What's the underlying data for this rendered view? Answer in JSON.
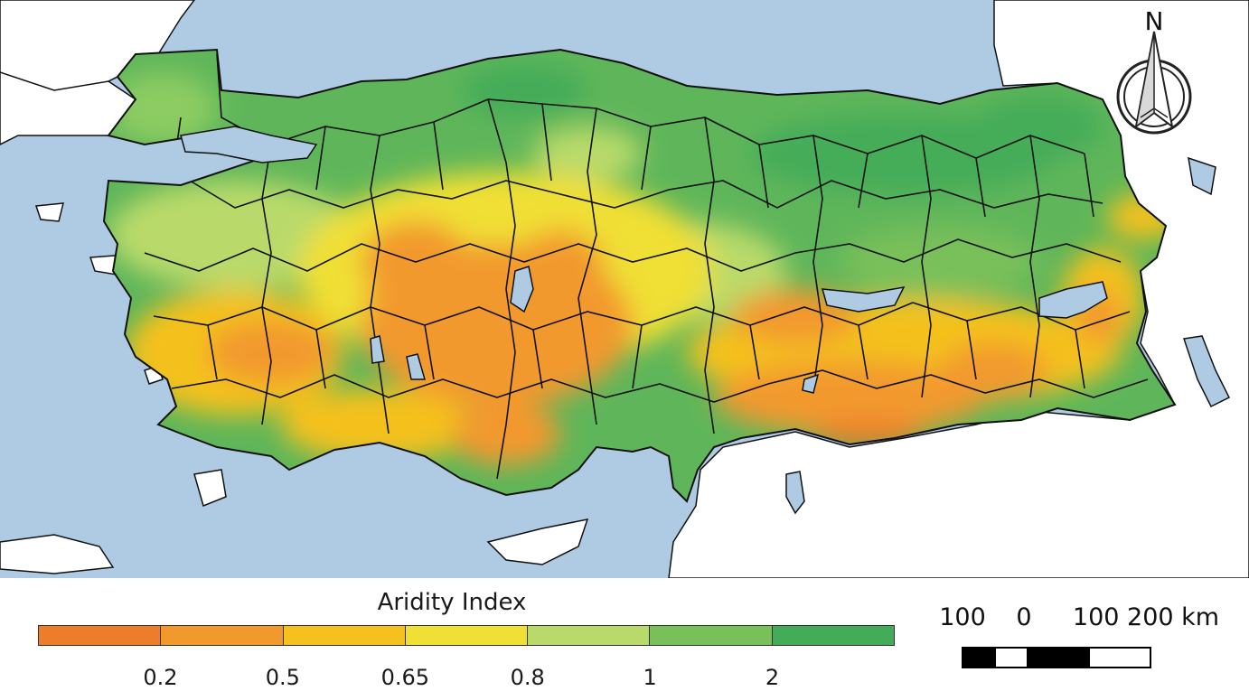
{
  "map": {
    "sea_color": "#aecbe3",
    "land_outside_color": "#ffffff",
    "border_color": "#111111",
    "north_label": "N"
  },
  "legend": {
    "title": "Aridity Index",
    "colors": [
      "#ee7d2b",
      "#f2992e",
      "#f4c11e",
      "#f0df34",
      "#b9da6a",
      "#79c05a",
      "#44ac58"
    ],
    "tick_labels": [
      "0.2",
      "0.5",
      "0.65",
      "0.8",
      "1",
      "2"
    ]
  },
  "scale_bar": {
    "labels": [
      "100",
      "0",
      "100 200 km"
    ],
    "segments": [
      "black",
      "white",
      "black",
      "white"
    ]
  }
}
